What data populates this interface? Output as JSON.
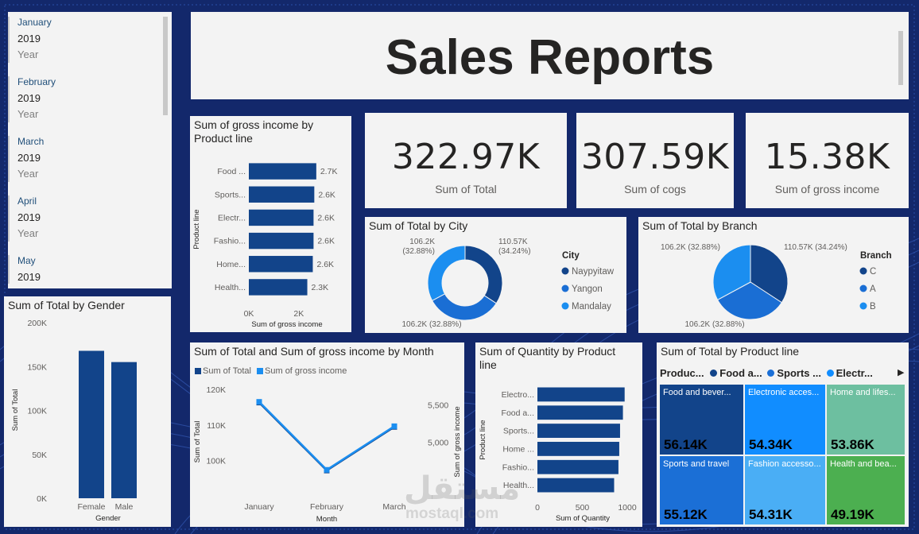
{
  "colors": {
    "background": "#13286b",
    "card": "#f3f3f3",
    "dark_blue": "#12448a",
    "mid_blue": "#1a6ed4",
    "light_blue": "#1b8ef0"
  },
  "slicer": {
    "items": [
      {
        "month": "January",
        "year": "2019",
        "field": "Year"
      },
      {
        "month": "February",
        "year": "2019",
        "field": "Year"
      },
      {
        "month": "March",
        "year": "2019",
        "field": "Year"
      },
      {
        "month": "April",
        "year": "2019",
        "field": "Year"
      },
      {
        "month": "May",
        "year": "2019",
        "field": ""
      }
    ]
  },
  "header": {
    "title": "Sales Reports"
  },
  "kpis": [
    {
      "value": "322.97K",
      "label": "Sum of Total"
    },
    {
      "value": "307.59K",
      "label": "Sum of cogs"
    },
    {
      "value": "15.38K",
      "label": "Sum of gross income"
    }
  ],
  "watermark": {
    "arabic": "مستقل",
    "latin": "mostaql.com"
  },
  "chart_data": [
    {
      "id": "gross_income_by_product",
      "type": "bar",
      "orientation": "horizontal",
      "title": "Sum of gross income by Product line",
      "title_lines": [
        "Sum of gross income by",
        "Product line"
      ],
      "xlabel": "Sum of gross income",
      "ylabel": "Product line",
      "categories": [
        "Food ...",
        "Sports...",
        "Electr...",
        "Fashio...",
        "Home...",
        "Health..."
      ],
      "values": [
        2700,
        2620,
        2590,
        2590,
        2560,
        2340
      ],
      "data_labels": [
        "2.7K",
        "2.6K",
        "2.6K",
        "2.6K",
        "2.6K",
        "2.3K"
      ],
      "xticks": [
        "0K",
        "2K"
      ],
      "xlim": [
        0,
        3500
      ]
    },
    {
      "id": "total_by_city",
      "type": "pie",
      "donut": true,
      "title": "Sum of Total by City",
      "legend_title": "City",
      "legend": [
        "Naypyitaw",
        "Yangon",
        "Mandalay"
      ],
      "values": [
        110.57,
        106.2,
        106.2
      ],
      "colors": [
        "#12448a",
        "#1a6ed4",
        "#1b8ef0"
      ],
      "labels": [
        [
          "110.57K",
          "(34.24%)"
        ],
        [
          "106.2K (32.88%)"
        ],
        [
          "106.2K",
          "(32.88%)"
        ]
      ]
    },
    {
      "id": "total_by_branch",
      "type": "pie",
      "title": "Sum of Total by Branch",
      "legend_title": "Branch",
      "legend": [
        "C",
        "A",
        "B"
      ],
      "values": [
        110.57,
        106.2,
        106.2
      ],
      "colors": [
        "#12448a",
        "#1a6ed4",
        "#1b8ef0"
      ],
      "labels": [
        [
          "110.57K (34.24%)"
        ],
        [
          "106.2K (32.88%)"
        ],
        [
          "106.2K (32.88%)"
        ]
      ]
    },
    {
      "id": "total_by_gender",
      "type": "bar",
      "title": "Sum of Total by Gender",
      "xlabel": "Gender",
      "ylabel": "Sum of Total",
      "categories": [
        "Female",
        "Male"
      ],
      "values": [
        167880,
        155080
      ],
      "yticks": [
        "200K",
        "150K",
        "100K",
        "50K",
        "0K"
      ],
      "ylim": [
        0,
        200000
      ]
    },
    {
      "id": "total_and_gross_by_month",
      "type": "line",
      "title": "Sum of Total and Sum of gross income by Month",
      "legend": [
        "Sum of Total",
        "Sum of gross income"
      ],
      "xlabel": "Month",
      "ylabel": "Sum of Total",
      "ylabel_right": "Sum of gross income",
      "categories": [
        "January",
        "February",
        "March"
      ],
      "series": [
        {
          "name": "Sum of Total",
          "values": [
            116290,
            97220,
            109460
          ],
          "axis": "left",
          "color": "#12448a"
        },
        {
          "name": "Sum of gross income",
          "values": [
            5537.7,
            4629.5,
            5212.2
          ],
          "axis": "right",
          "color": "#1b8ef0"
        }
      ],
      "yticks_left": [
        "120K",
        "110K",
        "100K"
      ],
      "ylim_left": [
        93000,
        122000
      ],
      "yticks_right": [
        "5,500",
        "5,000"
      ],
      "ylim_right": [
        4420,
        5800
      ]
    },
    {
      "id": "quantity_by_product",
      "type": "bar",
      "orientation": "horizontal",
      "title": "Sum of Quantity by Product line",
      "title_lines": [
        "Sum of Quantity by Product",
        "line"
      ],
      "xlabel": "Sum of Quantity",
      "ylabel": "Product line",
      "categories": [
        "Electro...",
        "Food a...",
        "Sports...",
        "Home ...",
        "Fashio...",
        "Health..."
      ],
      "values": [
        971,
        952,
        920,
        911,
        902,
        854
      ],
      "xticks": [
        "0",
        "500",
        "1000"
      ],
      "xlim": [
        0,
        1000
      ]
    },
    {
      "id": "total_by_product_treemap",
      "type": "treemap",
      "title": "Sum of Total by Product line",
      "legend_title": "Produc...",
      "legend": [
        "Food a...",
        "Sports ...",
        "Electr..."
      ],
      "cells": [
        {
          "label": "Food and bever...",
          "value": "56.14K",
          "color": "#12448a"
        },
        {
          "label": "Electronic acces...",
          "value": "54.34K",
          "color": "#118dff"
        },
        {
          "label": "Home and lifes...",
          "value": "53.86K",
          "color": "#6dbfa0"
        },
        {
          "label": "Sports and travel",
          "value": "55.12K",
          "color": "#1b6fd6"
        },
        {
          "label": "Fashion accesso...",
          "value": "54.31K",
          "color": "#4aaef5"
        },
        {
          "label": "Health and bea...",
          "value": "49.19K",
          "color": "#4caf50"
        }
      ]
    }
  ]
}
